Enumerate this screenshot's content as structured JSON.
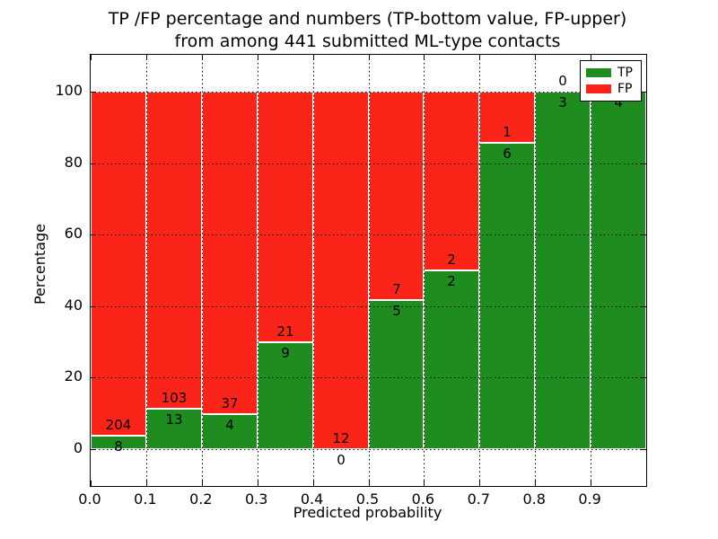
{
  "figure": {
    "title_line1": "TP /FP percentage and numbers (TP-bottom value, FP-upper)",
    "title_line2": "from among 441 submitted ML-type contacts",
    "xlabel": "Predicted probability",
    "ylabel": "Percentage"
  },
  "legend": {
    "position": "upper-right",
    "items": [
      {
        "label": "TP",
        "color": "#1e8c1e"
      },
      {
        "label": "FP",
        "color": "#fb2419"
      }
    ]
  },
  "chart_data": {
    "type": "bar",
    "stacked": true,
    "normalized": "each bar totals 100%",
    "title": "TP /FP percentage and numbers (TP-bottom value, FP-upper) from among 441 submitted ML-type contacts",
    "xlabel": "Predicted probability",
    "ylabel": "Percentage",
    "total_contacts": 441,
    "x_tick_labels": [
      "0.0",
      "0.1",
      "0.2",
      "0.3",
      "0.4",
      "0.5",
      "0.6",
      "0.7",
      "0.8",
      "0.9"
    ],
    "y_ticks": [
      0,
      20,
      40,
      60,
      80,
      100
    ],
    "xlim": [
      0.0,
      1.0
    ],
    "ylim": [
      -10.5,
      110.5
    ],
    "grid": "dotted black, both axes, drawn above bars",
    "categories": [
      "0.0-0.1",
      "0.1-0.2",
      "0.2-0.3",
      "0.3-0.4",
      "0.4-0.5",
      "0.5-0.6",
      "0.6-0.7",
      "0.7-0.8",
      "0.8-0.9",
      "0.9-1.0"
    ],
    "series": [
      {
        "name": "TP",
        "color": "#1e8c1e",
        "counts": [
          8,
          13,
          4,
          9,
          0,
          5,
          2,
          6,
          3,
          4
        ],
        "pct": [
          3.774,
          11.207,
          9.756,
          30.0,
          0.0,
          41.667,
          50.0,
          85.714,
          100.0,
          100.0
        ]
      },
      {
        "name": "FP",
        "color": "#fb2419",
        "counts": [
          204,
          103,
          37,
          21,
          12,
          7,
          2,
          1,
          0,
          0
        ],
        "pct": [
          96.226,
          88.793,
          90.244,
          70.0,
          100.0,
          58.333,
          50.0,
          14.286,
          0.0,
          0.0
        ]
      }
    ],
    "bar_label_rule": "FP count printed just above TP-segment top edge, TP count just below it; FP label of last bar hidden behind legend"
  }
}
